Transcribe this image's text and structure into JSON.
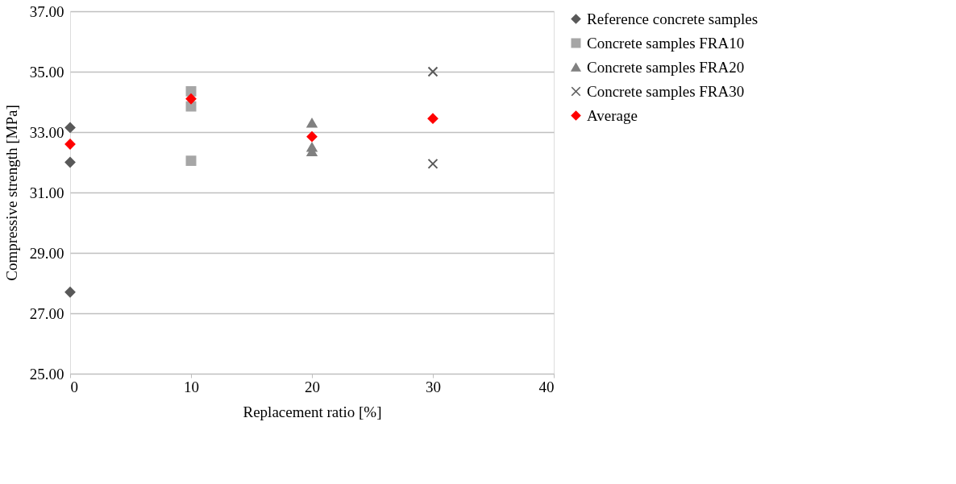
{
  "chart_data": {
    "type": "scatter",
    "xlabel": "Replacement ratio [%]",
    "ylabel": "Compressive strength [MPa]",
    "series": [
      {
        "name": "Reference concrete samples",
        "color": "#595959",
        "marker": "diamond",
        "x": [
          0,
          0,
          0
        ],
        "values": [
          33.15,
          32.0,
          27.7
        ]
      },
      {
        "name": "Concrete samples FRA10",
        "color": "#a6a6a6",
        "marker": "square",
        "x": [
          10,
          10,
          10
        ],
        "values": [
          34.35,
          33.85,
          32.05
        ]
      },
      {
        "name": "Concrete samples FRA20",
        "color": "#808080",
        "marker": "triangle",
        "x": [
          20,
          20,
          20
        ],
        "values": [
          33.3,
          32.5,
          32.35
        ]
      },
      {
        "name": "Concrete samples FRA30",
        "color": "#595959",
        "marker": "cross",
        "x": [
          30,
          30
        ],
        "values": [
          35.0,
          31.95
        ]
      },
      {
        "name": "Average",
        "color": "#ff0000",
        "marker": "diamond",
        "x": [
          0,
          10,
          20,
          30
        ],
        "values": [
          32.6,
          34.1,
          32.85,
          33.45
        ]
      }
    ],
    "xlim": [
      0,
      40
    ],
    "xticks": [
      0,
      10,
      20,
      30,
      40
    ],
    "ylim": [
      25,
      37
    ],
    "yticks": [
      {
        "value": 25,
        "label": "25.00"
      },
      {
        "value": 27,
        "label": "27.00"
      },
      {
        "value": 29,
        "label": "29.00"
      },
      {
        "value": 31,
        "label": "31.00"
      },
      {
        "value": 33,
        "label": "33.00"
      },
      {
        "value": 35,
        "label": "35.00"
      },
      {
        "value": 37,
        "label": "37.00"
      }
    ],
    "grid": "y",
    "legend": "right"
  }
}
